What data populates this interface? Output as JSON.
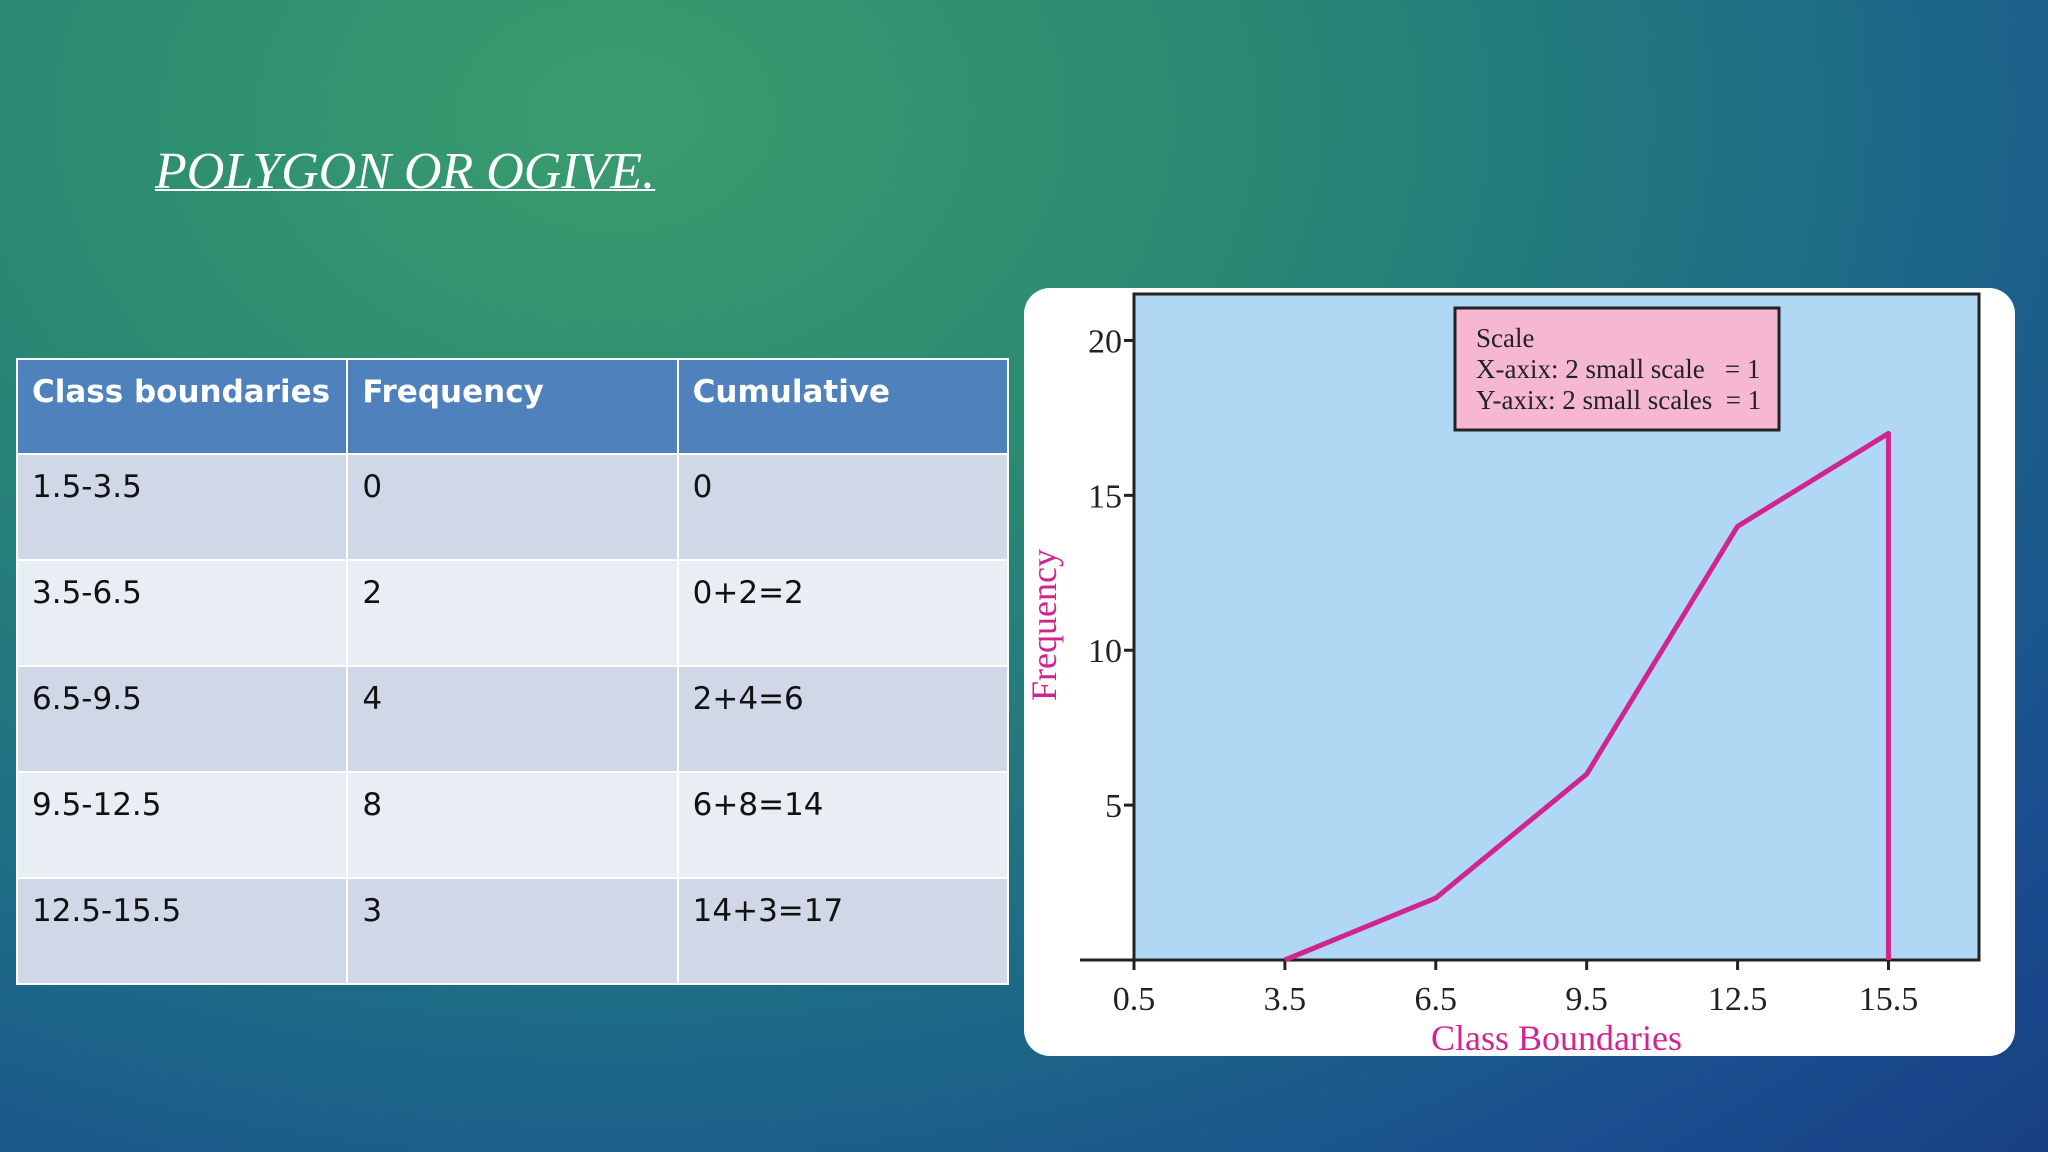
{
  "title": "POLYGON OR OGIVE.",
  "table": {
    "header": [
      "Class boundaries",
      "Frequency",
      "Cumulative"
    ],
    "rows": [
      [
        "1.5-3.5",
        "0",
        "0"
      ],
      [
        "3.5-6.5",
        "2",
        "0+2=2"
      ],
      [
        "6.5-9.5",
        "4",
        "2+4=6"
      ],
      [
        "9.5-12.5",
        "8",
        "6+8=14"
      ],
      [
        "12.5-15.5",
        "3",
        "14+3=17"
      ]
    ]
  },
  "chart_data": {
    "type": "line",
    "x_label": "Class Boundaries",
    "y_label": "Frequency",
    "annotation": [
      "Scale",
      "X-axix: 2 small scale   = 1",
      "Y-axix: 2 small scales  = 1"
    ],
    "x": [
      3.5,
      6.5,
      9.5,
      12.5,
      15.5,
      15.5
    ],
    "values": [
      0,
      2,
      6,
      14,
      17,
      0
    ],
    "color": "#d0258f",
    "xlim": [
      0.5,
      17.3
    ],
    "xticks": [
      0.5,
      3.5,
      6.5,
      9.5,
      12.5,
      15.5
    ],
    "ylim": [
      0,
      21.5
    ],
    "yticks": [
      5,
      10,
      15,
      20
    ]
  }
}
